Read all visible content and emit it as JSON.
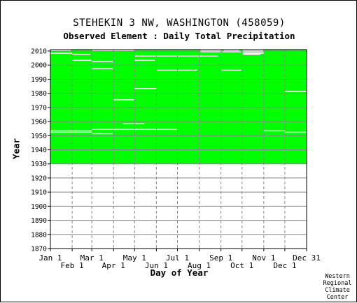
{
  "chart_data": {
    "type": "heatmap",
    "title": "STEHEKIN 3 NW, WASHINGTON   (458059)",
    "subtitle": "Observed Element : Daily Total Precipitation",
    "xlabel": "Day of Year",
    "ylabel": "Year",
    "ylim": [
      1870,
      2011
    ],
    "xlim": [
      1,
      366
    ],
    "y_ticks": [
      1870,
      1880,
      1890,
      1900,
      1910,
      1920,
      1930,
      1940,
      1950,
      1960,
      1970,
      1980,
      1990,
      2000,
      2010
    ],
    "x_ticks_top_row": [
      {
        "label": "Jan 1",
        "day": 1
      },
      {
        "label": "Mar 1",
        "day": 60
      },
      {
        "label": "May 1",
        "day": 121
      },
      {
        "label": "Jul 1",
        "day": 182
      },
      {
        "label": "Sep 1",
        "day": 244
      },
      {
        "label": "Nov 1",
        "day": 305
      },
      {
        "label": "Dec 31",
        "day": 366
      }
    ],
    "x_ticks_bottom_row": [
      {
        "label": "Feb 1",
        "day": 32
      },
      {
        "label": "Apr 1",
        "day": 91
      },
      {
        "label": "Jun 1",
        "day": 152
      },
      {
        "label": "Aug 1",
        "day": 213
      },
      {
        "label": "Oct 1",
        "day": 274
      },
      {
        "label": "Dec 1",
        "day": 335
      }
    ],
    "data_coverage": {
      "start_year": 1930,
      "end_year": 2010,
      "color": "#00ff00"
    },
    "missing_segments": [
      {
        "year": 2010,
        "start_day": 1,
        "end_day": 30
      },
      {
        "year": 2010,
        "start_day": 60,
        "end_day": 120
      },
      {
        "year": 2010,
        "start_day": 215,
        "end_day": 245
      },
      {
        "year": 2010,
        "start_day": 248,
        "end_day": 270
      },
      {
        "year": 2010,
        "start_day": 275,
        "end_day": 305
      },
      {
        "year": 2009,
        "start_day": 215,
        "end_day": 245
      },
      {
        "year": 2009,
        "start_day": 246,
        "end_day": 273
      },
      {
        "year": 2009,
        "start_day": 275,
        "end_day": 305
      },
      {
        "year": 2008,
        "start_day": 1,
        "end_day": 32
      },
      {
        "year": 2008,
        "start_day": 275,
        "end_day": 305
      },
      {
        "year": 2007,
        "start_day": 32,
        "end_day": 58
      },
      {
        "year": 2007,
        "start_day": 275,
        "end_day": 300
      },
      {
        "year": 2006,
        "start_day": 121,
        "end_day": 240
      },
      {
        "year": 2003,
        "start_day": 32,
        "end_day": 60
      },
      {
        "year": 2003,
        "start_day": 121,
        "end_day": 150
      },
      {
        "year": 2002,
        "start_day": 60,
        "end_day": 90
      },
      {
        "year": 1997,
        "start_day": 60,
        "end_day": 90
      },
      {
        "year": 1996,
        "start_day": 152,
        "end_day": 210
      },
      {
        "year": 1996,
        "start_day": 244,
        "end_day": 273
      },
      {
        "year": 1983,
        "start_day": 121,
        "end_day": 152
      },
      {
        "year": 1981,
        "start_day": 335,
        "end_day": 366
      },
      {
        "year": 1975,
        "start_day": 91,
        "end_day": 120
      },
      {
        "year": 1958,
        "start_day": 104,
        "end_day": 135
      },
      {
        "year": 1954,
        "start_day": 60,
        "end_day": 182
      },
      {
        "year": 1953,
        "start_day": 1,
        "end_day": 60
      },
      {
        "year": 1953,
        "start_day": 305,
        "end_day": 335
      },
      {
        "year": 1952,
        "start_day": 1,
        "end_day": 60
      },
      {
        "year": 1952,
        "start_day": 335,
        "end_day": 366
      },
      {
        "year": 1951,
        "start_day": 60,
        "end_day": 90
      }
    ]
  },
  "credit": [
    "Western",
    "Regional",
    "Climate",
    "Center"
  ],
  "colors": {
    "data": "#00ff00",
    "missing": "#ffffff",
    "grid": "#888888",
    "background": "#ffffff"
  }
}
